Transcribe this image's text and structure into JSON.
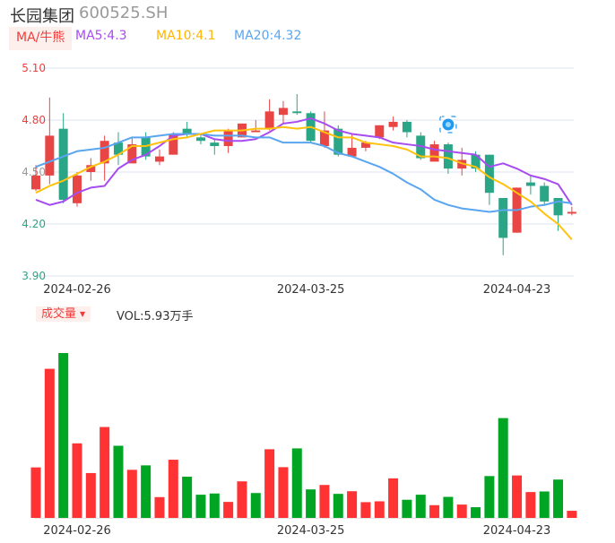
{
  "header": {
    "name": "长园集团",
    "code": "600525.SH"
  },
  "ma_legend": {
    "selector": "MA/牛熊",
    "ma5": "MA5:4.3",
    "ma10": "MA10:4.1",
    "ma20": "MA20:4.32"
  },
  "volume_legend": {
    "selector": "成交量",
    "arrow": "▼",
    "value": "VOL:5.93万手"
  },
  "colors": {
    "up": "#e84545",
    "down": "#2aa585",
    "vol_up": "#ff3333",
    "vol_down": "#00a524",
    "ma5": "#a64cf0",
    "ma10": "#ffc20e",
    "ma20": "#5aa5f0",
    "grid": "#dde3f0"
  },
  "chart_data": {
    "type": "candlestick",
    "ylim": [
      3.9,
      5.1
    ],
    "y_ticks": [
      {
        "label": "5.10",
        "value": 5.1,
        "color": "#f03c3c"
      },
      {
        "label": "4.80",
        "value": 4.8,
        "color": "#f03c3c"
      },
      {
        "label": "4.50",
        "value": 4.5,
        "color": "#999999"
      },
      {
        "label": "4.20",
        "value": 4.2,
        "color": "#2aa585"
      },
      {
        "label": "3.90",
        "value": 3.9,
        "color": "#2aa585"
      }
    ],
    "x_labels": [
      {
        "index": 3,
        "label": "2024-02-26"
      },
      {
        "index": 20,
        "label": "2024-03-25"
      },
      {
        "index": 35,
        "label": "2024-04-23"
      }
    ],
    "ohlc": [
      [
        4.4,
        4.54,
        4.39,
        4.48
      ],
      [
        4.48,
        4.93,
        4.43,
        4.71
      ],
      [
        4.75,
        4.84,
        4.32,
        4.34
      ],
      [
        4.32,
        4.5,
        4.3,
        4.48
      ],
      [
        4.5,
        4.58,
        4.45,
        4.54
      ],
      [
        4.55,
        4.71,
        4.45,
        4.68
      ],
      [
        4.67,
        4.73,
        4.54,
        4.6
      ],
      [
        4.55,
        4.7,
        4.55,
        4.66
      ],
      [
        4.7,
        4.73,
        4.57,
        4.59
      ],
      [
        4.56,
        4.63,
        4.54,
        4.59
      ],
      [
        4.6,
        4.73,
        4.6,
        4.72
      ],
      [
        4.75,
        4.79,
        4.7,
        4.72
      ],
      [
        4.7,
        4.72,
        4.66,
        4.68
      ],
      [
        4.67,
        4.69,
        4.6,
        4.65
      ],
      [
        4.65,
        4.75,
        4.61,
        4.74
      ],
      [
        4.7,
        4.78,
        4.7,
        4.78
      ],
      [
        4.73,
        4.8,
        4.73,
        4.74
      ],
      [
        4.75,
        4.92,
        4.74,
        4.85
      ],
      [
        4.83,
        4.91,
        4.78,
        4.87
      ],
      [
        4.85,
        4.95,
        4.83,
        4.84
      ],
      [
        4.84,
        4.85,
        4.67,
        4.68
      ],
      [
        4.65,
        4.85,
        4.64,
        4.74
      ],
      [
        4.75,
        4.77,
        4.59,
        4.6
      ],
      [
        4.59,
        4.72,
        4.59,
        4.64
      ],
      [
        4.64,
        4.68,
        4.62,
        4.67
      ],
      [
        4.7,
        4.77,
        4.69,
        4.77
      ],
      [
        4.76,
        4.82,
        4.74,
        4.79
      ],
      [
        4.79,
        4.8,
        4.7,
        4.73
      ],
      [
        4.71,
        4.73,
        4.57,
        4.58
      ],
      [
        4.56,
        4.68,
        4.56,
        4.66
      ],
      [
        4.66,
        4.67,
        4.49,
        4.52
      ],
      [
        4.52,
        4.64,
        4.48,
        4.57
      ],
      [
        4.6,
        4.62,
        4.5,
        4.52
      ],
      [
        4.6,
        4.6,
        4.31,
        4.38
      ],
      [
        4.35,
        4.35,
        4.02,
        4.12
      ],
      [
        4.15,
        4.41,
        4.15,
        4.41
      ],
      [
        4.44,
        4.48,
        4.37,
        4.42
      ],
      [
        4.42,
        4.44,
        4.31,
        4.33
      ],
      [
        4.35,
        4.35,
        4.16,
        4.25
      ],
      [
        4.26,
        4.3,
        4.25,
        4.27
      ]
    ],
    "ma5": [
      4.34,
      4.31,
      4.33,
      4.38,
      4.41,
      4.42,
      4.52,
      4.57,
      4.6,
      4.65,
      4.71,
      4.72,
      4.72,
      4.69,
      4.68,
      4.68,
      4.69,
      4.73,
      4.78,
      4.79,
      4.81,
      4.78,
      4.74,
      4.72,
      4.71,
      4.7,
      4.67,
      4.66,
      4.65,
      4.63,
      4.62,
      4.61,
      4.6,
      4.53,
      4.55,
      4.52,
      4.48,
      4.46,
      4.43,
      4.31
    ],
    "ma10": [
      4.38,
      4.42,
      4.45,
      4.49,
      4.53,
      4.56,
      4.6,
      4.65,
      4.65,
      4.67,
      4.69,
      4.7,
      4.72,
      4.74,
      4.74,
      4.74,
      4.75,
      4.75,
      4.76,
      4.75,
      4.76,
      4.73,
      4.7,
      4.7,
      4.67,
      4.66,
      4.65,
      4.63,
      4.59,
      4.59,
      4.58,
      4.55,
      4.53,
      4.47,
      4.43,
      4.38,
      4.33,
      4.26,
      4.2,
      4.11
    ],
    "ma20": [
      4.53,
      4.56,
      4.59,
      4.62,
      4.63,
      4.64,
      4.67,
      4.7,
      4.7,
      4.71,
      4.72,
      4.72,
      4.72,
      4.71,
      4.71,
      4.71,
      4.7,
      4.7,
      4.67,
      4.67,
      4.67,
      4.65,
      4.61,
      4.59,
      4.56,
      4.53,
      4.49,
      4.44,
      4.4,
      4.34,
      4.31,
      4.29,
      4.28,
      4.27,
      4.28,
      4.28,
      4.3,
      4.31,
      4.33,
      4.32
    ],
    "marker_index": 30,
    "volume_unit": "万手",
    "volume": [
      42.0,
      124.0,
      137.1,
      62.0,
      37.3,
      75.6,
      60.0,
      40.0,
      43.7,
      17.3,
      48.4,
      34.3,
      19.3,
      20.3,
      13.3,
      30.4,
      20.7,
      57.1,
      42.2,
      57.8,
      23.7,
      27.4,
      20.0,
      22.2,
      13.1,
      13.8,
      32.9,
      15.1,
      19.3,
      10.6,
      17.5,
      11.1,
      8.9,
      34.8,
      83.0,
      35.3,
      21.5,
      22.0,
      31.9,
      5.93
    ],
    "volume_up": [
      1,
      1,
      0,
      1,
      1,
      1,
      0,
      1,
      0,
      1,
      1,
      0,
      0,
      0,
      1,
      1,
      0,
      1,
      1,
      0,
      0,
      1,
      0,
      1,
      1,
      1,
      1,
      0,
      0,
      1,
      0,
      1,
      0,
      0,
      0,
      1,
      1,
      0,
      0,
      1
    ]
  }
}
